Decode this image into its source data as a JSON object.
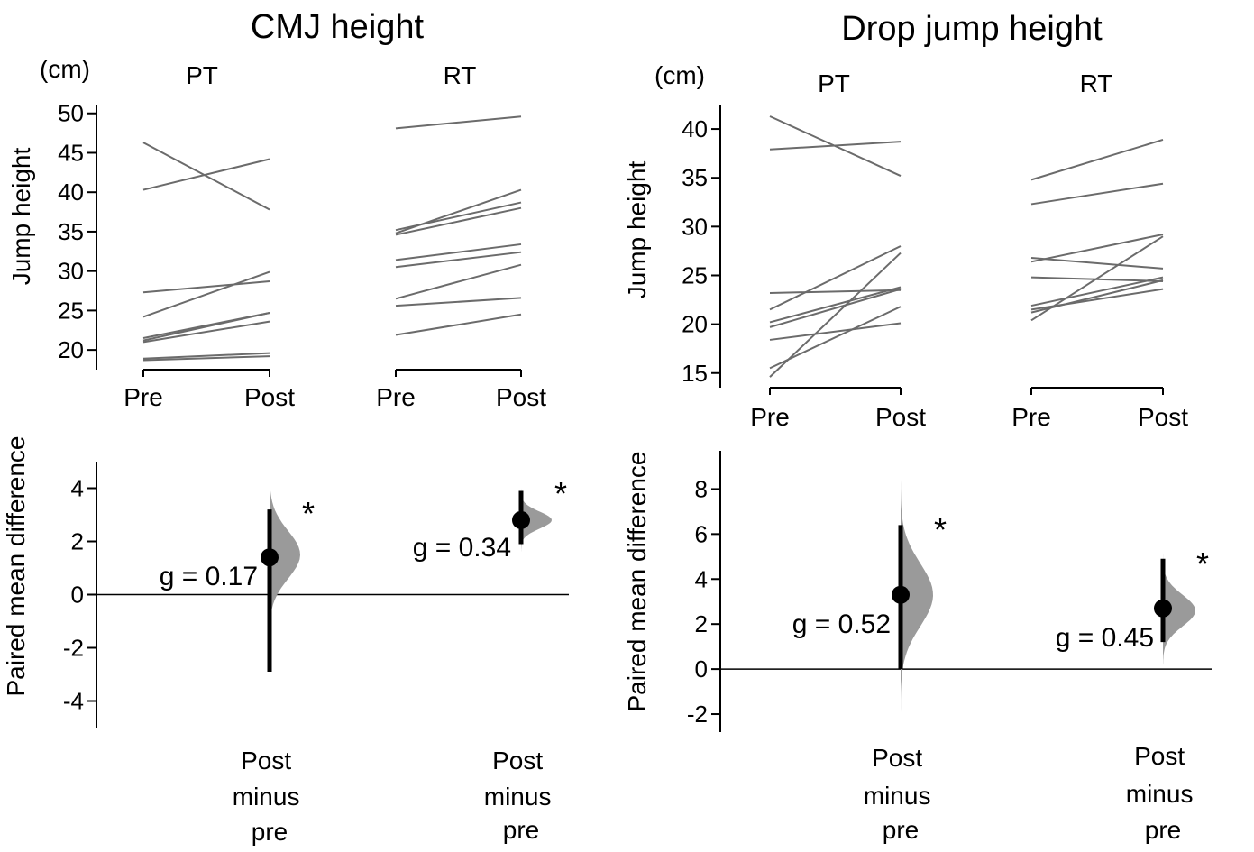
{
  "colors": {
    "line": "#6b6b6b",
    "dist": "#9a9a9a",
    "axis": "#000000",
    "point": "#000000"
  },
  "chart_data": [
    {
      "panel": "cmj-slopegraph",
      "type": "line",
      "title": "CMJ height",
      "ylabel": "Jump height",
      "unit": "(cm)",
      "ylim": [
        17.5,
        51
      ],
      "yticks": [
        20,
        25,
        30,
        35,
        40,
        45,
        50
      ],
      "groups": [
        {
          "label": "PT",
          "x": [
            "Pre",
            "Post"
          ],
          "pairs": [
            [
              46.3,
              37.8
            ],
            [
              40.3,
              44.2
            ],
            [
              27.3,
              28.7
            ],
            [
              24.2,
              29.9
            ],
            [
              21.5,
              24.7
            ],
            [
              21.2,
              24.7
            ],
            [
              21.0,
              23.6
            ],
            [
              18.9,
              19.6
            ],
            [
              18.7,
              19.2
            ]
          ]
        },
        {
          "label": "RT",
          "x": [
            "Pre",
            "Post"
          ],
          "pairs": [
            [
              48.1,
              49.6
            ],
            [
              35.2,
              38.7
            ],
            [
              34.8,
              40.3
            ],
            [
              34.6,
              38.0
            ],
            [
              31.4,
              33.4
            ],
            [
              30.5,
              32.4
            ],
            [
              26.5,
              30.8
            ],
            [
              25.6,
              26.6
            ],
            [
              21.9,
              24.5
            ]
          ]
        }
      ]
    },
    {
      "panel": "cmj-estimation",
      "type": "scatter",
      "ylabel": "Paired mean difference",
      "ylim": [
        -5,
        5
      ],
      "yticks": [
        -4,
        -2,
        0,
        2,
        4
      ],
      "groups": [
        {
          "label": "Post minus pre",
          "mean": 1.4,
          "ci": [
            -2.9,
            3.2
          ],
          "g_label": "g = 0.17",
          "sig": "*",
          "dist_range": [
            -4.5,
            4.7
          ],
          "dist_mode": 1.5,
          "dist_sd": 0.9
        },
        {
          "label": "Post minus pre",
          "mean": 2.8,
          "ci": [
            1.9,
            3.9
          ],
          "g_label": "g = 0.34",
          "sig": "*",
          "dist_range": [
            1.3,
            4.3
          ],
          "dist_mode": 2.8,
          "dist_sd": 0.32
        }
      ]
    },
    {
      "panel": "dj-slopegraph",
      "type": "line",
      "title": "Drop jump height",
      "ylabel": "Jump height",
      "unit": "(cm)",
      "ylim": [
        13.5,
        42.5
      ],
      "yticks": [
        15,
        20,
        25,
        30,
        35,
        40
      ],
      "groups": [
        {
          "label": "PT",
          "x": [
            "Pre",
            "Post"
          ],
          "pairs": [
            [
              41.3,
              35.2
            ],
            [
              37.9,
              38.7
            ],
            [
              23.2,
              23.5
            ],
            [
              21.5,
              28.0
            ],
            [
              20.2,
              23.8
            ],
            [
              19.7,
              23.6
            ],
            [
              18.4,
              20.1
            ],
            [
              15.5,
              21.8
            ],
            [
              14.6,
              27.3
            ]
          ]
        },
        {
          "label": "RT",
          "x": [
            "Pre",
            "Post"
          ],
          "pairs": [
            [
              34.8,
              38.9
            ],
            [
              32.3,
              34.4
            ],
            [
              26.8,
              25.7
            ],
            [
              26.4,
              29.2
            ],
            [
              24.8,
              24.4
            ],
            [
              21.9,
              24.8
            ],
            [
              21.5,
              23.6
            ],
            [
              21.2,
              24.5
            ],
            [
              20.4,
              29.0
            ]
          ]
        }
      ]
    },
    {
      "panel": "dj-estimation",
      "type": "scatter",
      "ylabel": "Paired mean difference",
      "ylim": [
        -2.8,
        9.7
      ],
      "yticks": [
        -2,
        0,
        2,
        4,
        6,
        8
      ],
      "groups": [
        {
          "label": "Post minus pre",
          "mean": 3.3,
          "ci": [
            0.0,
            6.4
          ],
          "g_label": "g = 0.52",
          "sig": "*",
          "dist_range": [
            -2.5,
            9.0
          ],
          "dist_mode": 3.3,
          "dist_sd": 1.4
        },
        {
          "label": "Post minus pre",
          "mean": 2.7,
          "ci": [
            1.2,
            4.9
          ],
          "g_label": "g = 0.45",
          "sig": "*",
          "dist_range": [
            0.2,
            5.6
          ],
          "dist_mode": 2.6,
          "dist_sd": 0.7
        }
      ]
    }
  ]
}
